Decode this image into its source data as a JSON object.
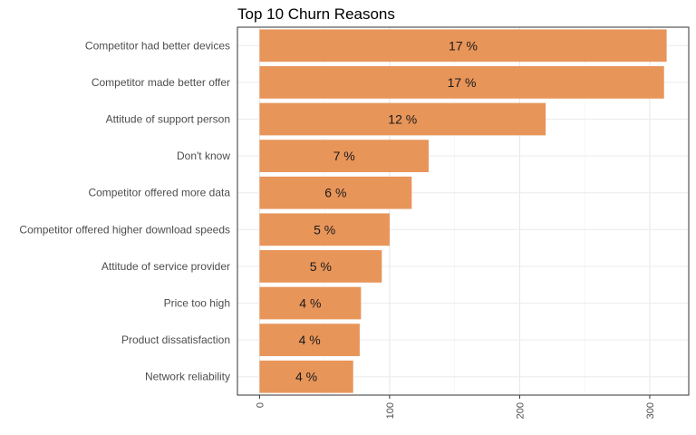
{
  "chart_data": {
    "type": "bar",
    "orientation": "horizontal",
    "title": "Top 10 Churn Reasons",
    "xlabel": "",
    "ylabel": "",
    "categories": [
      "Competitor had better devices",
      "Competitor made better offer",
      "Attitude of support person",
      "Don't know",
      "Competitor offered more data",
      "Competitor offered higher download speeds",
      "Attitude of service provider",
      "Price too high",
      "Product dissatisfaction",
      "Network reliability"
    ],
    "values": [
      313,
      311,
      220,
      130,
      117,
      100,
      94,
      78,
      77,
      72
    ],
    "data_labels": [
      "17 %",
      "17 %",
      "12 %",
      "7 %",
      "6 %",
      "5 %",
      "5 %",
      "4 %",
      "4 %",
      "4 %"
    ],
    "xlim": [
      -17,
      330
    ],
    "xticks": [
      0,
      100,
      200,
      300
    ],
    "xtick_labels": [
      "0",
      "100",
      "200",
      "300"
    ],
    "grid": true,
    "legend": "none",
    "bar_color": "#E8955A"
  }
}
